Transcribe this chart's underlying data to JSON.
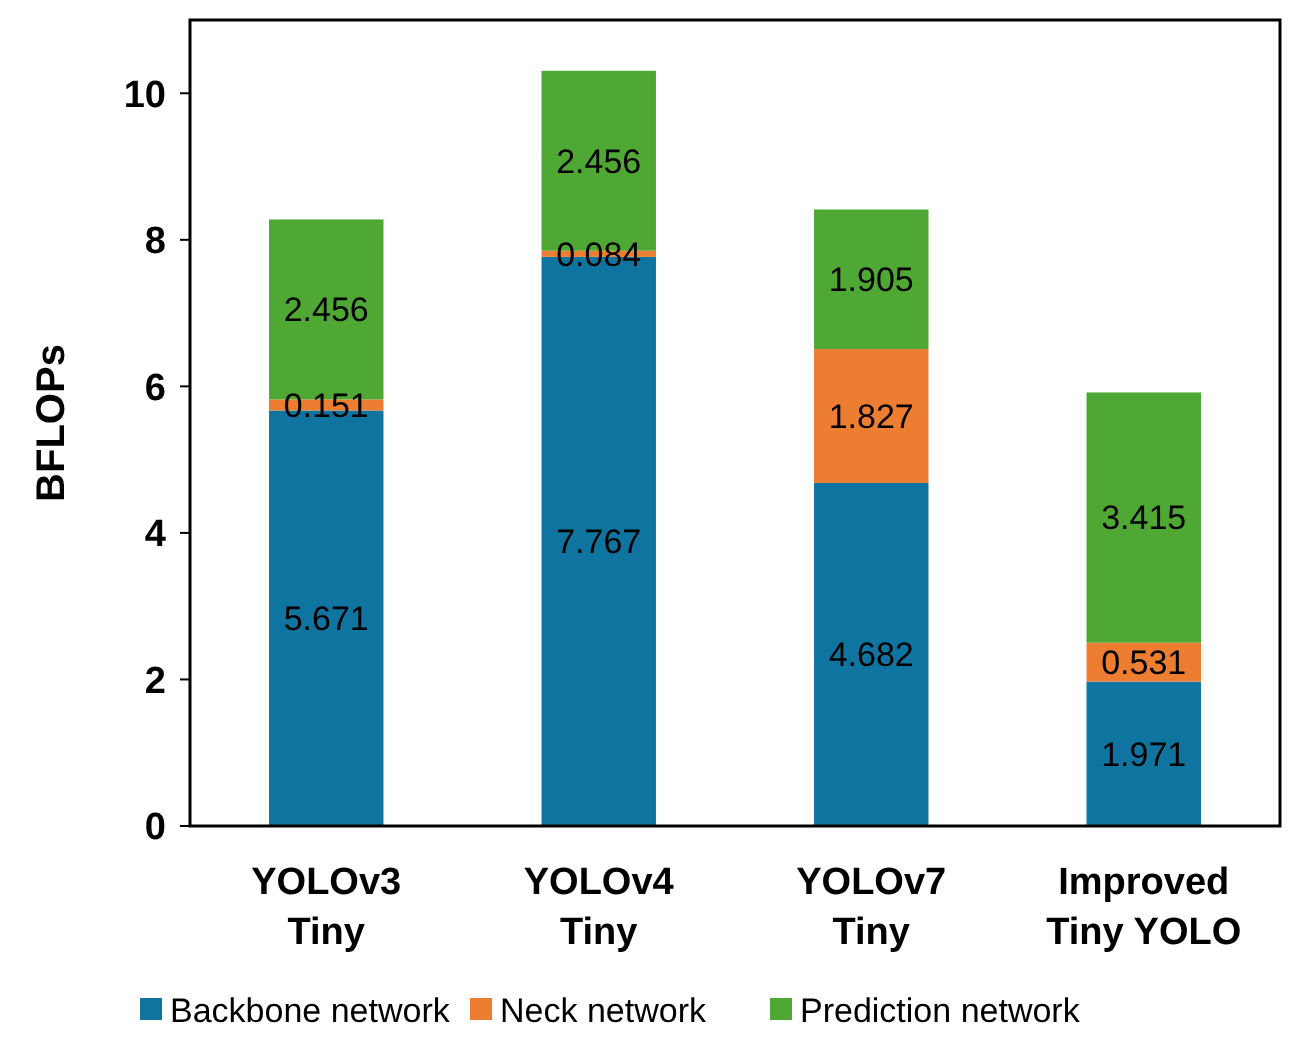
{
  "chart_data": {
    "type": "bar",
    "stacked": true,
    "ylabel": "BFLOPs",
    "categories": [
      "YOLOv3\nTiny",
      "YOLOv4\nTiny",
      "YOLOv7\nTiny",
      "Improved\nTiny YOLO"
    ],
    "series": [
      {
        "name": "Backbone network",
        "color": "#0f75a0",
        "values": [
          5.671,
          7.767,
          4.682,
          1.971
        ]
      },
      {
        "name": "Neck network",
        "color": "#ec7d31",
        "values": [
          0.151,
          0.084,
          1.827,
          0.531
        ]
      },
      {
        "name": "Prediction network",
        "color": "#4ea833",
        "values": [
          2.456,
          2.456,
          1.905,
          3.415
        ]
      }
    ],
    "ylim": [
      0,
      11
    ],
    "yticks": [
      0,
      2,
      4,
      6,
      8,
      10
    ],
    "grid": false,
    "legend": "bottom",
    "data_labels": true
  }
}
